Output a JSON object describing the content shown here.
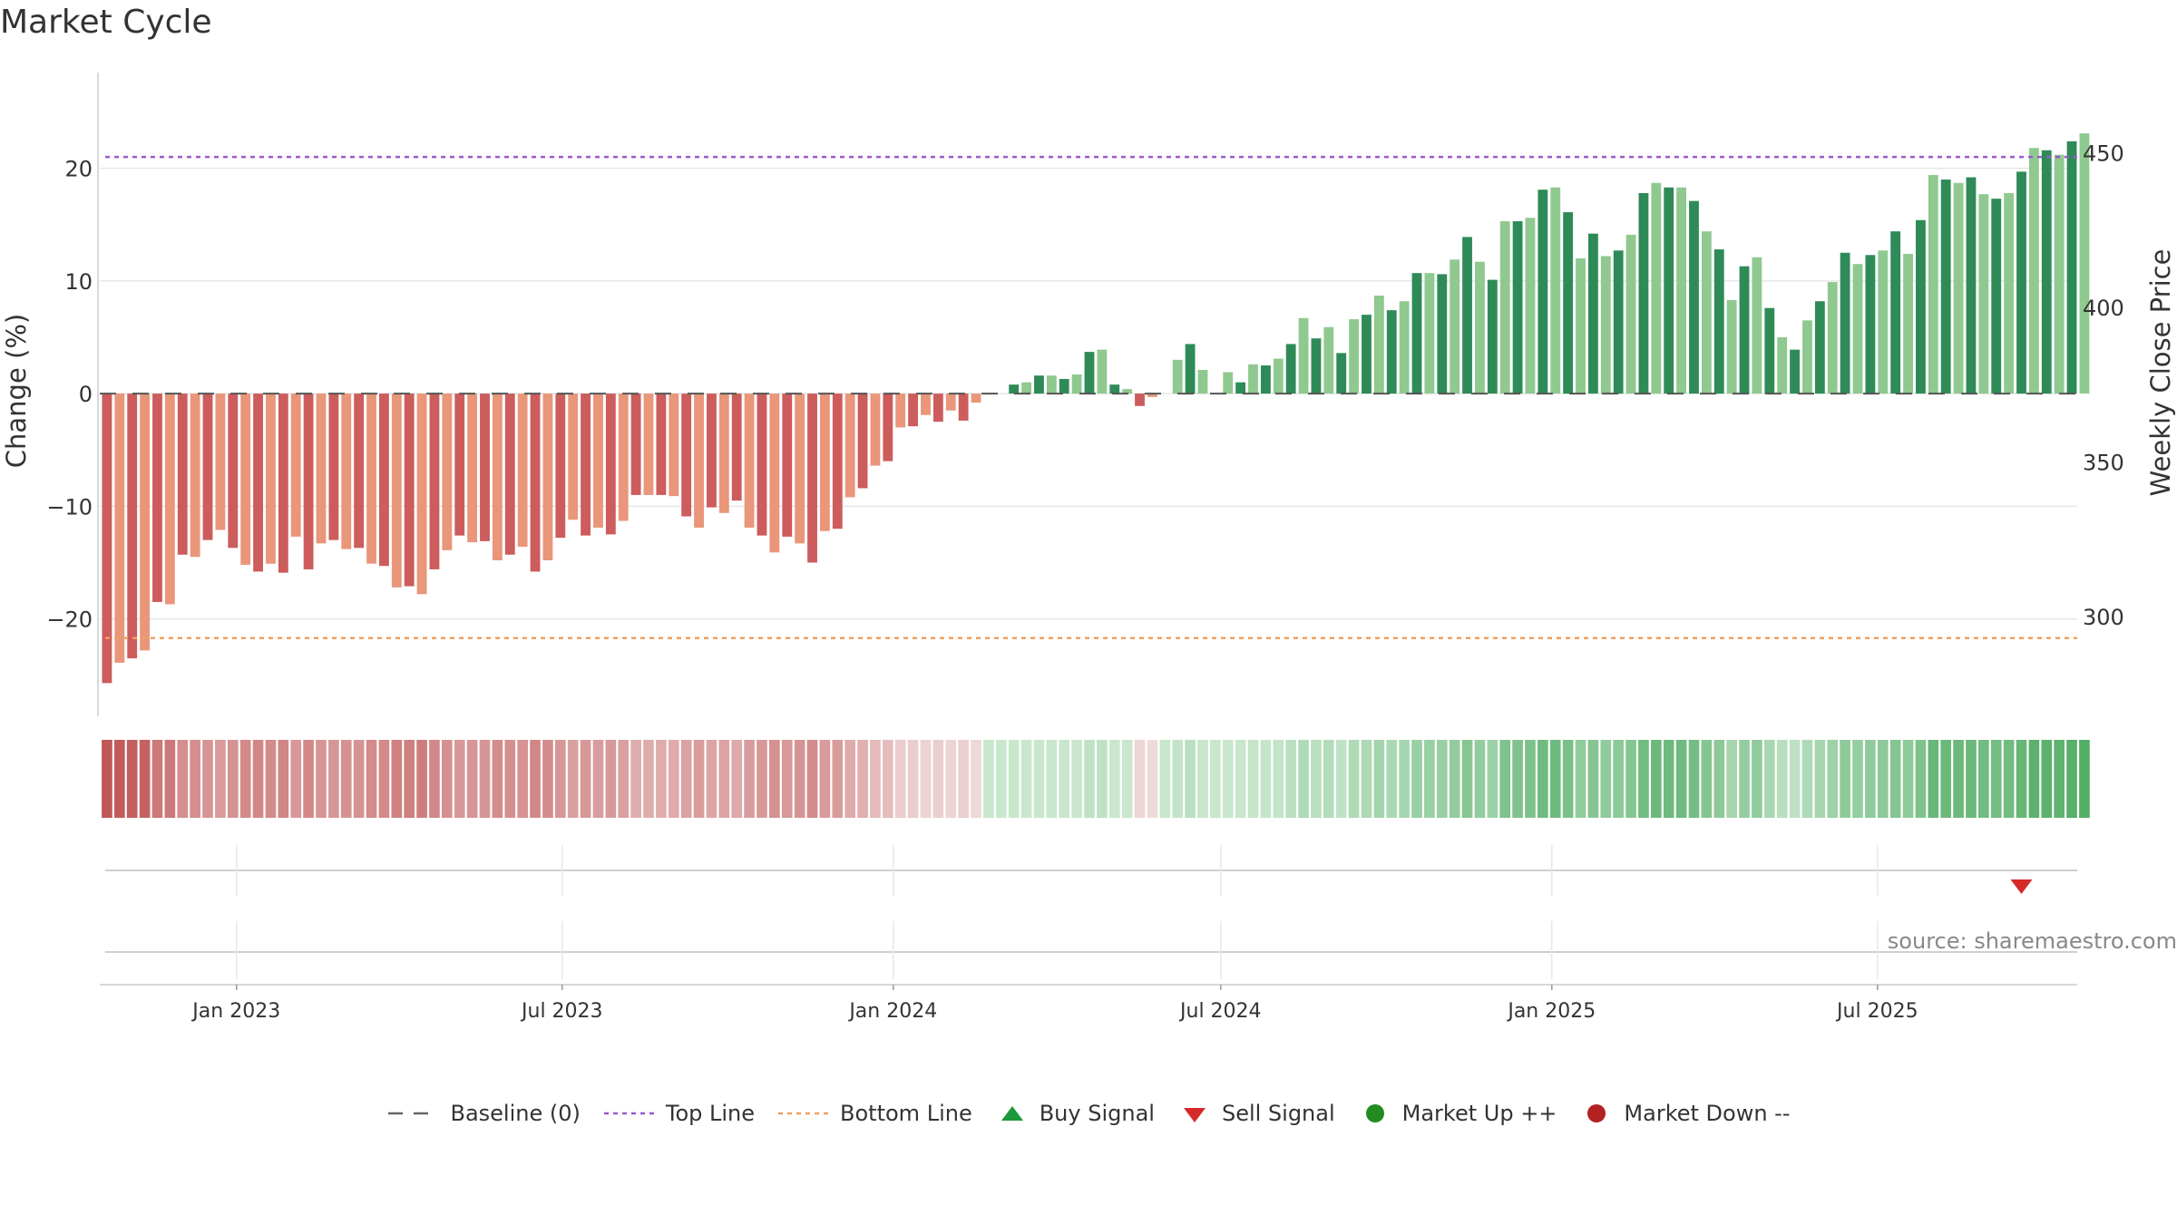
{
  "title": "Market Cycle",
  "source": "source: sharemaestro.com",
  "legend": [
    {
      "label": "Baseline (0)",
      "symbol": "dash",
      "color": "#666666"
    },
    {
      "label": "Top Line",
      "symbol": "dot-line",
      "color": "#9b59d0"
    },
    {
      "label": "Bottom Line",
      "symbol": "dot-line",
      "color": "#f0a060"
    },
    {
      "label": "Buy Signal",
      "symbol": "triangle-up",
      "color": "#1a9a3a"
    },
    {
      "label": "Sell Signal",
      "symbol": "triangle-down",
      "color": "#d62a2a"
    },
    {
      "label": "Market Up ++",
      "symbol": "circle",
      "color": "#228b22"
    },
    {
      "label": "Market Down --",
      "symbol": "circle",
      "color": "#b22222"
    }
  ],
  "colors": {
    "neg_dark": "#cd5c5c",
    "neg_light": "#e9967a",
    "pos_dark": "#2e8b57",
    "pos_light": "#8fc98f",
    "top_line": "#9b59d0",
    "bottom_line": "#f0a060",
    "sell_signal": "#d62a2a"
  },
  "chart_data": {
    "type": "bar",
    "ylabel": "Change (%)",
    "y2label": "Weekly Close Price",
    "ylim": [
      -28,
      28.5
    ],
    "y2lim": [
      270,
      476
    ],
    "yticks": [
      -20,
      -10,
      0,
      10,
      20
    ],
    "y2ticks": [
      300,
      350,
      400,
      450
    ],
    "xlim": [
      "2022-10-17",
      "2025-10-20"
    ],
    "xticks": [
      {
        "label": "Jan 2023",
        "date": "2023-01-01"
      },
      {
        "label": "Jul 2023",
        "date": "2023-07-01"
      },
      {
        "label": "Jan 2024",
        "date": "2024-01-01"
      },
      {
        "label": "Jul 2024",
        "date": "2024-07-01"
      },
      {
        "label": "Jan 2025",
        "date": "2025-01-01"
      },
      {
        "label": "Jul 2025",
        "date": "2025-07-01"
      }
    ],
    "first_week": "2022-10-21",
    "top_line": 21,
    "bottom_line": -21.7,
    "baseline": 0,
    "values": [
      -25.7,
      -23.9,
      -23.5,
      -22.8,
      -18.5,
      -18.7,
      -14.3,
      -14.5,
      -13.0,
      -12.1,
      -13.7,
      -15.2,
      -15.8,
      -15.1,
      -15.9,
      -12.7,
      -15.6,
      -13.3,
      -13.0,
      -13.8,
      -13.7,
      -15.1,
      -15.3,
      -17.2,
      -17.1,
      -17.8,
      -15.6,
      -13.9,
      -12.6,
      -13.2,
      -13.1,
      -14.8,
      -14.3,
      -13.6,
      -15.8,
      -14.8,
      -12.8,
      -11.2,
      -12.6,
      -11.9,
      -12.5,
      -11.3,
      -9.0,
      -9.0,
      -9.0,
      -9.1,
      -10.9,
      -11.9,
      -10.1,
      -10.6,
      -9.5,
      -11.9,
      -12.6,
      -14.1,
      -12.7,
      -13.3,
      -15.0,
      -12.2,
      -12.0,
      -9.2,
      -8.4,
      -6.4,
      -6.0,
      -3.0,
      -2.9,
      -1.9,
      -2.5,
      -1.5,
      -2.4,
      -0.8,
      0.0,
      0.0,
      0.8,
      1.0,
      1.6,
      1.6,
      1.3,
      1.7,
      3.7,
      3.9,
      0.8,
      0.4,
      -1.1,
      -0.3,
      0.0,
      3.0,
      4.4,
      2.1,
      0.0,
      1.9,
      1.0,
      2.6,
      2.5,
      3.1,
      4.4,
      6.7,
      4.9,
      5.9,
      3.6,
      6.6,
      7.0,
      8.7,
      7.4,
      8.2,
      10.7,
      10.7,
      10.6,
      11.9,
      13.9,
      11.7,
      10.1,
      15.3,
      15.3,
      15.6,
      18.1,
      18.3,
      16.1,
      12.0,
      14.2,
      12.2,
      12.7,
      14.1,
      17.8,
      18.7,
      18.3,
      18.3,
      17.1,
      14.4,
      12.8,
      8.3,
      11.3,
      12.1,
      7.6,
      5.0,
      3.9,
      6.5,
      8.2,
      9.9,
      12.5,
      11.5,
      12.3,
      12.7,
      14.4,
      12.4,
      15.4,
      19.4,
      19.0,
      18.7,
      19.2,
      17.7,
      17.3,
      17.8,
      19.7,
      21.8,
      21.6,
      21.2,
      22.4,
      23.1
    ],
    "sell_signals": [
      {
        "week_index": 152
      }
    ],
    "buy_signals": [],
    "market_up": [],
    "market_down": []
  }
}
